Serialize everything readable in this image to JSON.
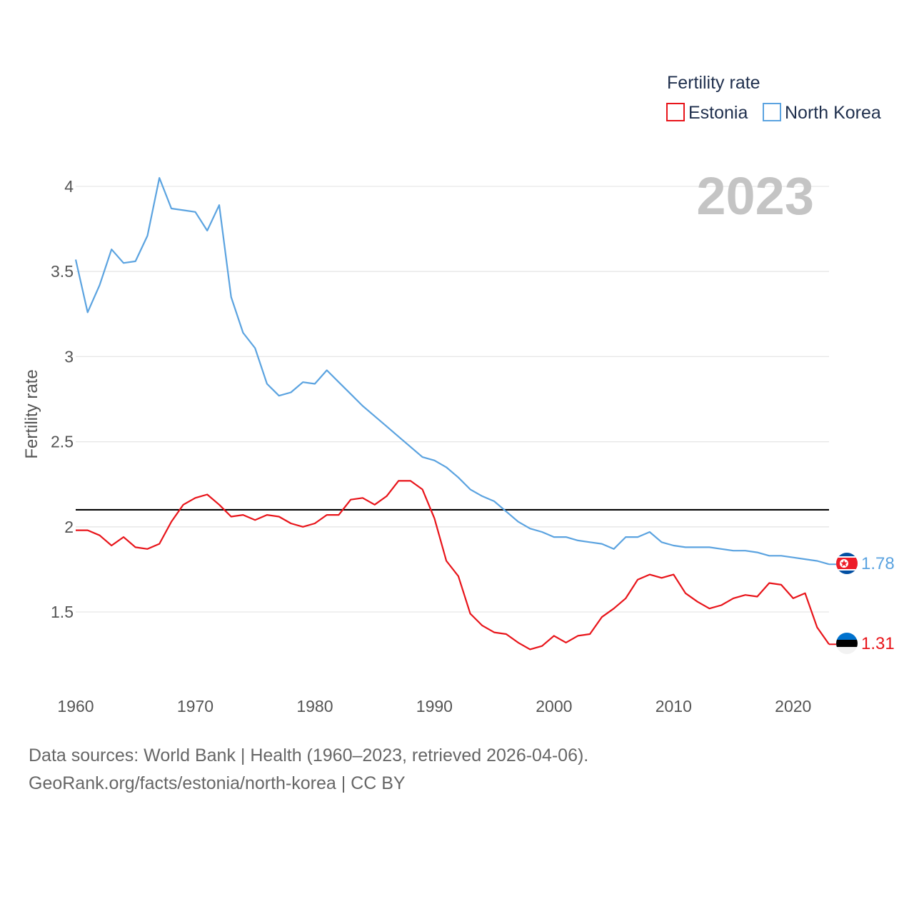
{
  "colors": {
    "estonia": "#e8141a",
    "north_korea": "#5ba3e0",
    "grid": "#e6e6e6",
    "reference": "#000000"
  },
  "year_display": "2023",
  "legend": {
    "title": "Fertility rate",
    "items": [
      "Estonia",
      "North Korea"
    ]
  },
  "footer": {
    "line1": "Data sources: World Bank | Health (1960–2023, retrieved 2026-04-06).",
    "line2": "GeoRank.org/facts/estonia/north-korea | CC BY"
  },
  "chart_data": {
    "type": "line",
    "title": "Fertility rate",
    "xlabel": "",
    "ylabel": "Fertility rate",
    "x_range": [
      1960,
      2023
    ],
    "ylim": [
      1.1,
      4.15
    ],
    "x_ticks": [
      "1960",
      "1970",
      "1980",
      "1990",
      "2000",
      "2010",
      "2020"
    ],
    "y_ticks": [
      "1.5",
      "2",
      "2.5",
      "3",
      "3.5",
      "4"
    ],
    "reference_line": 2.1,
    "end_labels": {
      "north_korea": "1.78",
      "estonia": "1.31"
    },
    "years": [
      1960,
      1961,
      1962,
      1963,
      1964,
      1965,
      1966,
      1967,
      1968,
      1969,
      1970,
      1971,
      1972,
      1973,
      1974,
      1975,
      1976,
      1977,
      1978,
      1979,
      1980,
      1981,
      1982,
      1983,
      1984,
      1985,
      1986,
      1987,
      1988,
      1989,
      1990,
      1991,
      1992,
      1993,
      1994,
      1995,
      1996,
      1997,
      1998,
      1999,
      2000,
      2001,
      2002,
      2003,
      2004,
      2005,
      2006,
      2007,
      2008,
      2009,
      2010,
      2011,
      2012,
      2013,
      2014,
      2015,
      2016,
      2017,
      2018,
      2019,
      2020,
      2021,
      2022,
      2023
    ],
    "series": [
      {
        "name": "North Korea",
        "key": "north_korea",
        "values": [
          3.57,
          3.26,
          3.42,
          3.63,
          3.55,
          3.56,
          3.71,
          4.05,
          3.87,
          3.86,
          3.85,
          3.74,
          3.89,
          3.35,
          3.14,
          3.05,
          2.84,
          2.77,
          2.79,
          2.85,
          2.84,
          2.92,
          2.85,
          2.78,
          2.71,
          2.65,
          2.59,
          2.53,
          2.47,
          2.41,
          2.39,
          2.35,
          2.29,
          2.22,
          2.18,
          2.15,
          2.09,
          2.03,
          1.99,
          1.97,
          1.94,
          1.94,
          1.92,
          1.91,
          1.9,
          1.87,
          1.94,
          1.94,
          1.97,
          1.91,
          1.89,
          1.88,
          1.88,
          1.88,
          1.87,
          1.86,
          1.86,
          1.85,
          1.83,
          1.83,
          1.82,
          1.81,
          1.8,
          1.78
        ]
      },
      {
        "name": "Estonia",
        "key": "estonia",
        "values": [
          1.98,
          1.98,
          1.95,
          1.89,
          1.94,
          1.88,
          1.87,
          1.9,
          2.03,
          2.13,
          2.17,
          2.19,
          2.13,
          2.06,
          2.07,
          2.04,
          2.07,
          2.06,
          2.02,
          2.0,
          2.02,
          2.07,
          2.07,
          2.16,
          2.17,
          2.13,
          2.18,
          2.27,
          2.27,
          2.22,
          2.05,
          1.8,
          1.71,
          1.49,
          1.42,
          1.38,
          1.37,
          1.32,
          1.28,
          1.3,
          1.36,
          1.32,
          1.36,
          1.37,
          1.47,
          1.52,
          1.58,
          1.69,
          1.72,
          1.7,
          1.72,
          1.61,
          1.56,
          1.52,
          1.54,
          1.58,
          1.6,
          1.59,
          1.67,
          1.66,
          1.58,
          1.61,
          1.41,
          1.31
        ]
      }
    ]
  }
}
